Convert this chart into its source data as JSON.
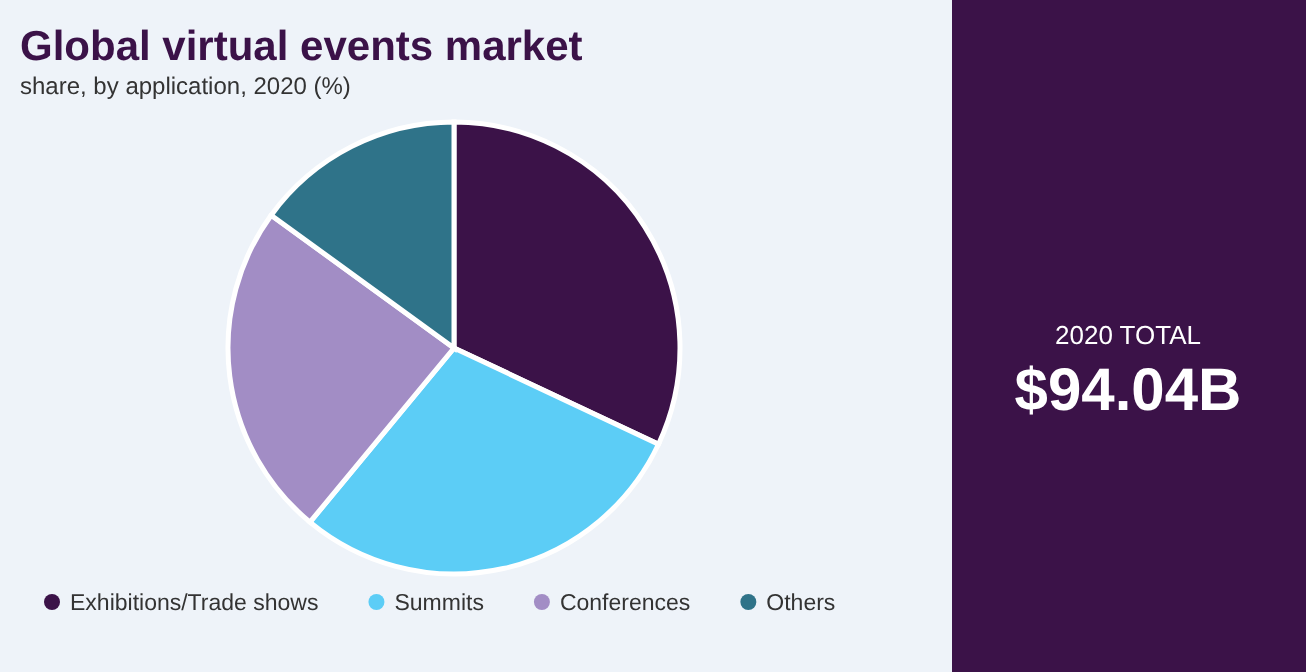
{
  "chart_data": {
    "type": "pie",
    "title": "Global virtual events market",
    "subtitle": "share, by application, 2020 (%)",
    "categories": [
      "Exhibitions/Trade shows",
      "Summits",
      "Conferences",
      "Others"
    ],
    "values": [
      32,
      29,
      24,
      15
    ],
    "colors": [
      "#3b1248",
      "#5ccdf6",
      "#a28dc5",
      "#2f7389"
    ],
    "legend": "bottom",
    "annotations": [
      "2020 TOTAL",
      "$94.04B"
    ]
  }
}
